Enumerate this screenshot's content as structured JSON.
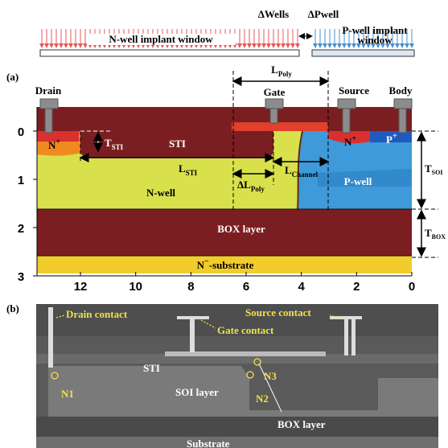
{
  "implant": {
    "n_window": "N-well implant window",
    "delta_wells": "ΔWells",
    "delta_pwell": "ΔPwell",
    "p_window_1": "P-well implant",
    "p_window_2": "window"
  },
  "panel_a": {
    "label": "(a)",
    "terminals": [
      "Drain",
      "Gate",
      "Source",
      "Body"
    ],
    "l_poly": {
      "main": "L",
      "sub": "Poly"
    },
    "n_plus_drain": {
      "main": "N",
      "sup": "+"
    },
    "t_sti": {
      "main": "T",
      "sub": "STI"
    },
    "sti": "STI",
    "l_sti": {
      "main": "L",
      "sub": "STI"
    },
    "n_well": "N-well",
    "delta_l_poly": {
      "main": "ΔL",
      "sub": "Poly"
    },
    "l_channel": {
      "main": "L",
      "sub": "Channel"
    },
    "p_well": "P-well",
    "n_plus_source": {
      "main": "N",
      "sup": "+"
    },
    "p_plus": {
      "main": "P",
      "sup": "+"
    },
    "t_soi": {
      "main": "T",
      "sub": "SOI"
    },
    "t_box": {
      "main": "T",
      "sub": "BOX"
    },
    "box": "BOX layer",
    "substrate": {
      "main": "N",
      "sup": "−",
      "rest": "-substrate"
    },
    "y_ticks": [
      0,
      1,
      2,
      3
    ],
    "x_ticks": [
      12,
      10,
      8,
      6,
      4,
      2,
      0
    ]
  },
  "panel_b": {
    "label": "(b)",
    "drain_contact": "Drain contact",
    "gate_contact": "Gate contact",
    "source_contact": "Source contact",
    "sti": "STI",
    "soi": "SOI layer",
    "box": "BOX layer",
    "substrate": "Substrate",
    "n1": "N1",
    "n2": "N2",
    "n3": "N3"
  }
}
